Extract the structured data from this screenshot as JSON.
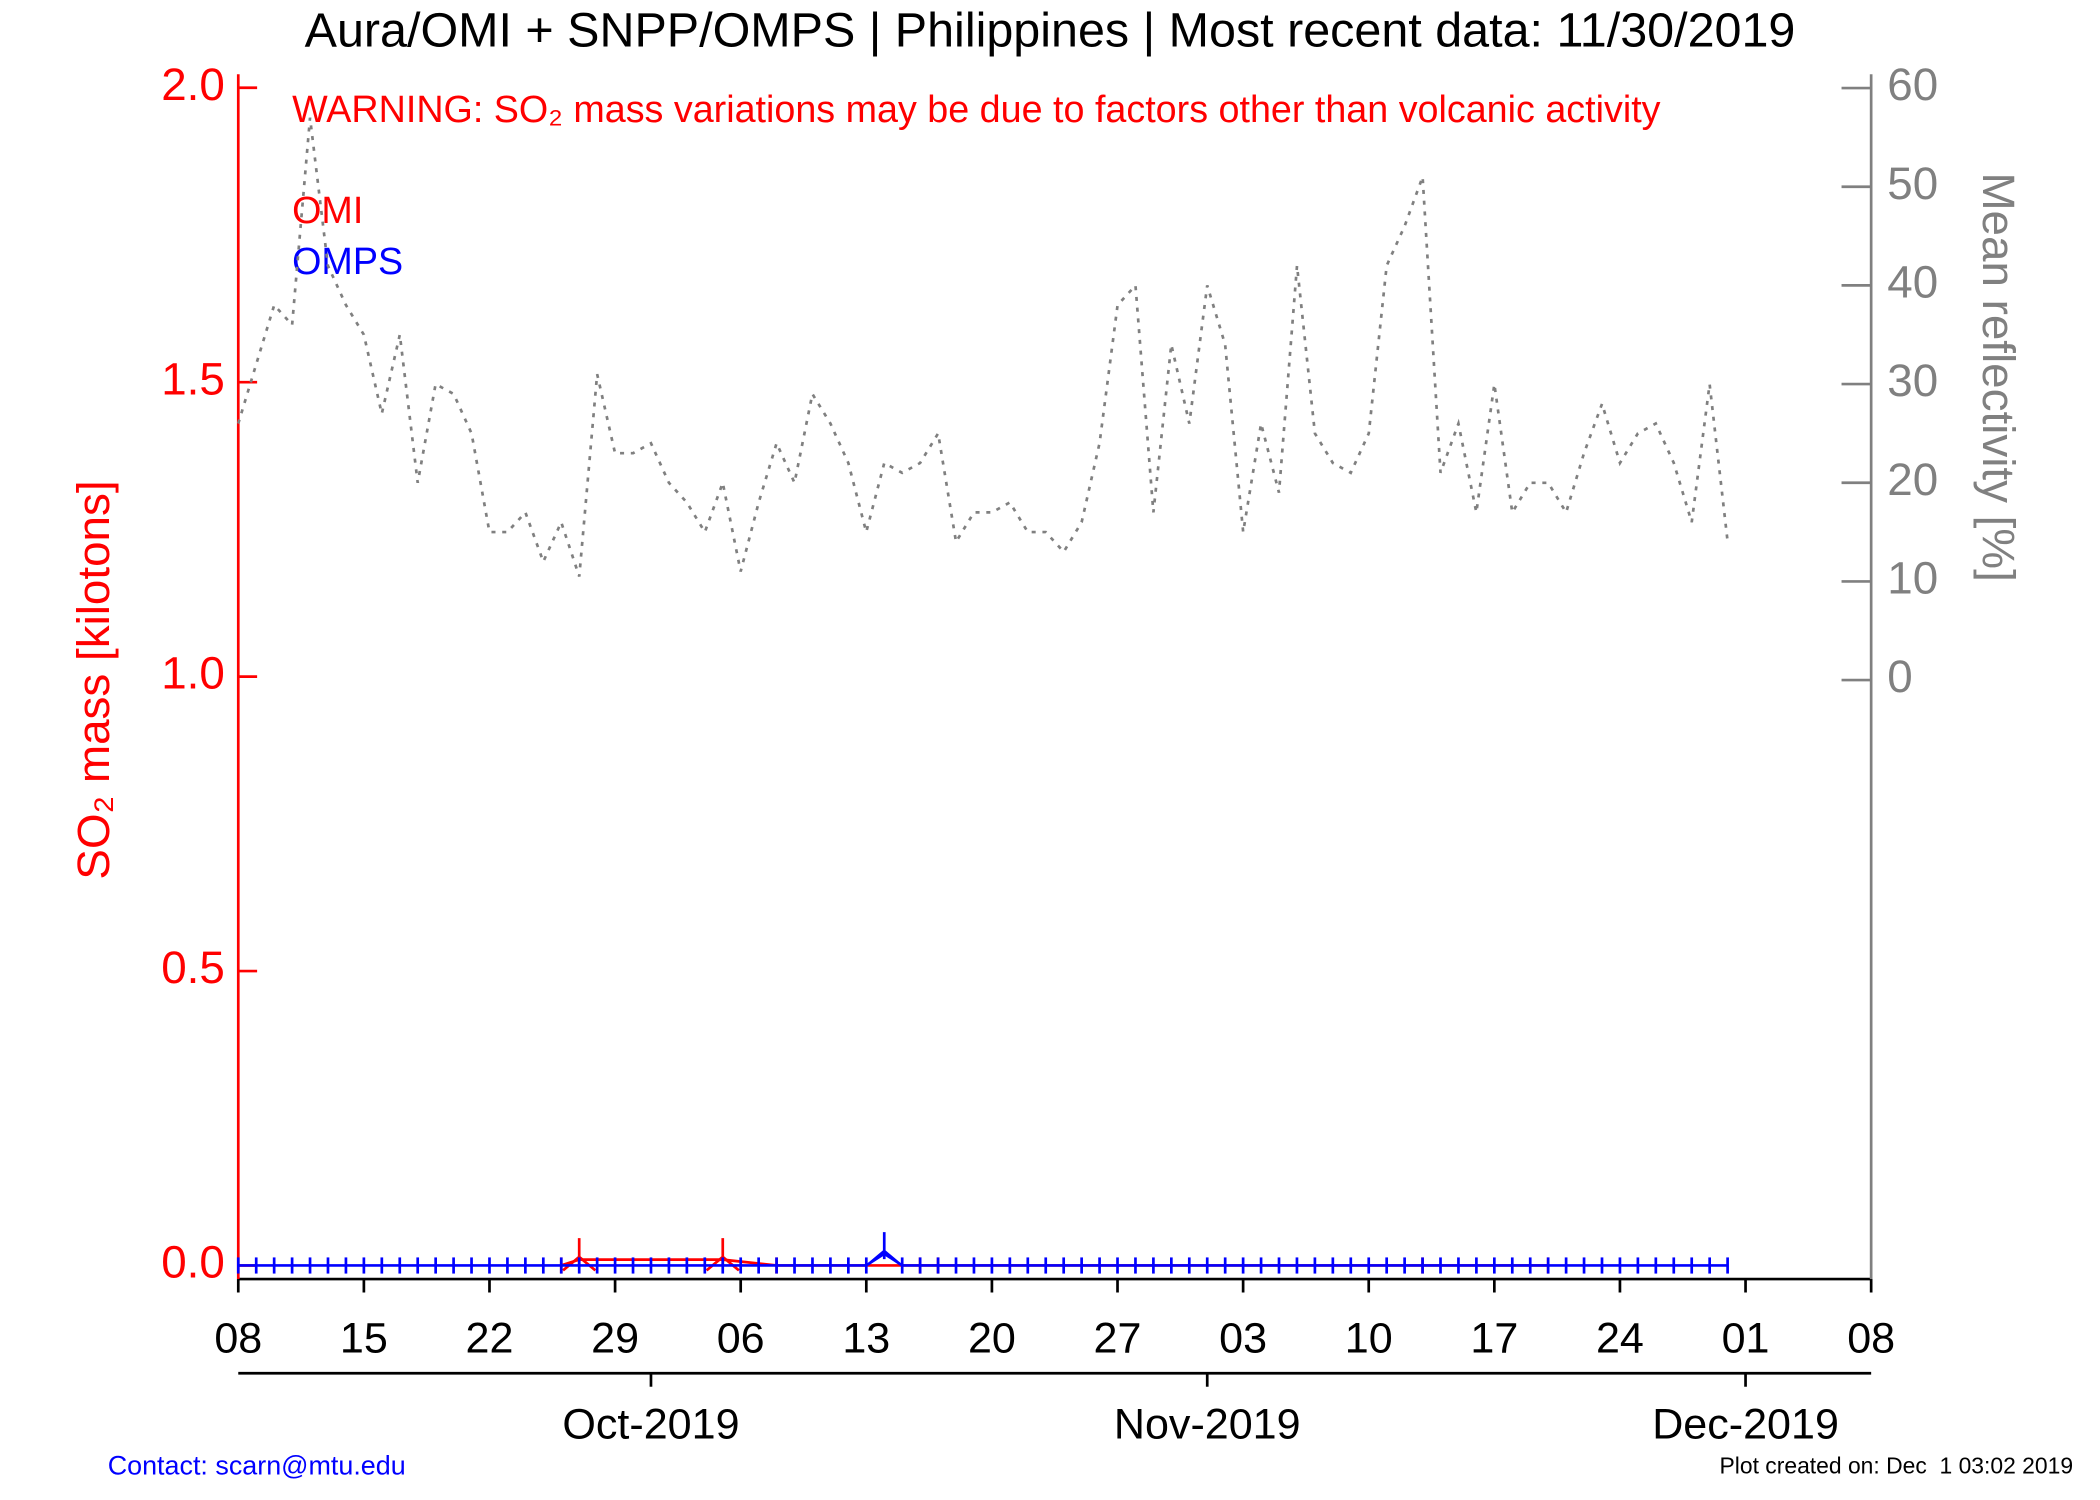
{
  "chart_data": {
    "type": "line",
    "title": "Aura/OMI + SNPP/OMPS | Philippines | Most recent data: 11/30/2019",
    "annotation": "WARNING: SO₂ mass variations may be due to factors other than volcanic activity",
    "ylabel": "SO₂ mass [kilotons]",
    "y2label": "Mean reflectivity [%]",
    "ylim": [
      -0.023,
      2.023
    ],
    "yticks": [
      {
        "value": 0,
        "label": "0.0"
      },
      0.5,
      {
        "value": 1,
        "label": "1.0"
      },
      1.5,
      {
        "value": 2,
        "label": "2.0"
      }
    ],
    "y2lim": [
      -60.7,
      61.4
    ],
    "y2ticks": [
      0,
      10,
      20,
      30,
      40,
      50,
      60
    ],
    "xlim": [
      "2019-09-08",
      "2019-12-08"
    ],
    "xticks": [
      {
        "value": "2019-09-08",
        "label": "08"
      },
      {
        "value": "2019-09-15",
        "label": "15"
      },
      {
        "value": "2019-09-22",
        "label": "22"
      },
      {
        "value": "2019-09-29",
        "label": "29"
      },
      {
        "value": "2019-10-06",
        "label": "06"
      },
      {
        "value": "2019-10-13",
        "label": "13"
      },
      {
        "value": "2019-10-20",
        "label": "20"
      },
      {
        "value": "2019-10-27",
        "label": "27"
      },
      {
        "value": "2019-11-03",
        "label": "03"
      },
      {
        "value": "2019-11-10",
        "label": "10"
      },
      {
        "value": "2019-11-17",
        "label": "17"
      },
      {
        "value": "2019-11-24",
        "label": "24"
      },
      {
        "value": "2019-12-01",
        "label": "01"
      },
      {
        "value": "2019-12-08",
        "label": "08"
      }
    ],
    "month_ticks": [
      {
        "value": "2019-10-01",
        "label": "Oct-2019"
      },
      {
        "value": "2019-11-01",
        "label": "Nov-2019"
      },
      {
        "value": "2019-12-01",
        "label": "Dec-2019"
      }
    ],
    "x": [
      "2019-09-08",
      "2019-09-09",
      "2019-09-10",
      "2019-09-11",
      "2019-09-12",
      "2019-09-13",
      "2019-09-14",
      "2019-09-15",
      "2019-09-16",
      "2019-09-17",
      "2019-09-18",
      "2019-09-19",
      "2019-09-20",
      "2019-09-21",
      "2019-09-22",
      "2019-09-23",
      "2019-09-24",
      "2019-09-25",
      "2019-09-26",
      "2019-09-27",
      "2019-09-28",
      "2019-09-29",
      "2019-09-30",
      "2019-10-01",
      "2019-10-02",
      "2019-10-03",
      "2019-10-04",
      "2019-10-05",
      "2019-10-06",
      "2019-10-07",
      "2019-10-08",
      "2019-10-09",
      "2019-10-10",
      "2019-10-11",
      "2019-10-12",
      "2019-10-13",
      "2019-10-14",
      "2019-10-15",
      "2019-10-16",
      "2019-10-17",
      "2019-10-18",
      "2019-10-19",
      "2019-10-20",
      "2019-10-21",
      "2019-10-22",
      "2019-10-23",
      "2019-10-24",
      "2019-10-25",
      "2019-10-26",
      "2019-10-27",
      "2019-10-28",
      "2019-10-29",
      "2019-10-30",
      "2019-10-31",
      "2019-11-01",
      "2019-11-02",
      "2019-11-03",
      "2019-11-04",
      "2019-11-05",
      "2019-11-06",
      "2019-11-07",
      "2019-11-08",
      "2019-11-09",
      "2019-11-10",
      "2019-11-11",
      "2019-11-12",
      "2019-11-13",
      "2019-11-14",
      "2019-11-15",
      "2019-11-16",
      "2019-11-17",
      "2019-11-18",
      "2019-11-19",
      "2019-11-20",
      "2019-11-21",
      "2019-11-22",
      "2019-11-23",
      "2019-11-24",
      "2019-11-25",
      "2019-11-26",
      "2019-11-27",
      "2019-11-28",
      "2019-11-29",
      "2019-11-30"
    ],
    "series": [
      {
        "name": "OMI",
        "color": "#ff0000",
        "x": [
          "2019-09-26",
          "2019-09-27",
          "2019-10-05",
          "2019-10-08",
          "2019-10-16",
          "2019-10-17",
          "2019-11-13",
          "2019-11-20"
        ],
        "values": [
          0,
          0.01,
          0.01,
          0,
          0,
          0,
          0,
          0
        ]
      },
      {
        "name": "OMPS",
        "color": "#0000ff",
        "values": [
          0,
          0,
          0,
          0,
          0,
          0,
          0,
          0,
          0,
          0,
          0,
          0,
          0,
          0,
          0,
          0,
          0,
          0,
          0,
          0,
          0,
          0,
          0,
          0,
          0,
          0,
          0,
          0,
          0,
          0,
          0,
          0,
          0,
          0,
          0,
          0,
          0.02,
          0,
          0,
          0,
          0,
          0,
          0,
          0,
          0,
          0,
          0,
          0,
          0,
          0,
          0,
          0,
          0,
          0,
          0,
          0,
          0,
          0,
          0,
          0,
          0,
          0,
          0,
          0,
          0,
          0,
          0,
          0,
          0,
          0,
          0,
          0,
          0,
          0,
          0,
          0,
          0,
          0,
          0,
          0,
          0,
          0,
          0,
          0
        ]
      },
      {
        "axis": "y2",
        "color": "#808080",
        "linestyle": "dotted",
        "values": [
          26,
          32,
          38,
          36,
          57,
          42,
          38,
          35,
          27,
          35,
          20,
          30,
          29,
          25,
          15,
          15,
          17,
          12,
          16,
          10.5,
          31,
          23,
          23,
          24,
          20,
          18,
          15,
          20,
          11,
          18,
          24,
          20,
          29,
          26,
          22,
          15,
          22,
          21,
          22,
          25,
          14,
          17,
          17,
          18,
          15,
          15,
          13,
          16,
          24,
          38,
          40,
          17,
          34,
          26,
          40,
          34,
          15,
          26,
          19,
          42,
          25,
          22,
          21,
          25,
          42,
          46,
          51,
          21,
          26,
          17,
          30,
          17,
          20,
          20,
          17,
          23,
          28,
          22,
          25,
          26,
          22,
          16,
          30,
          14
        ]
      }
    ],
    "footer_left": "Contact: scarn@mtu.edu",
    "footer_right": "Plot created on: Dec  1 03:02 2019"
  }
}
